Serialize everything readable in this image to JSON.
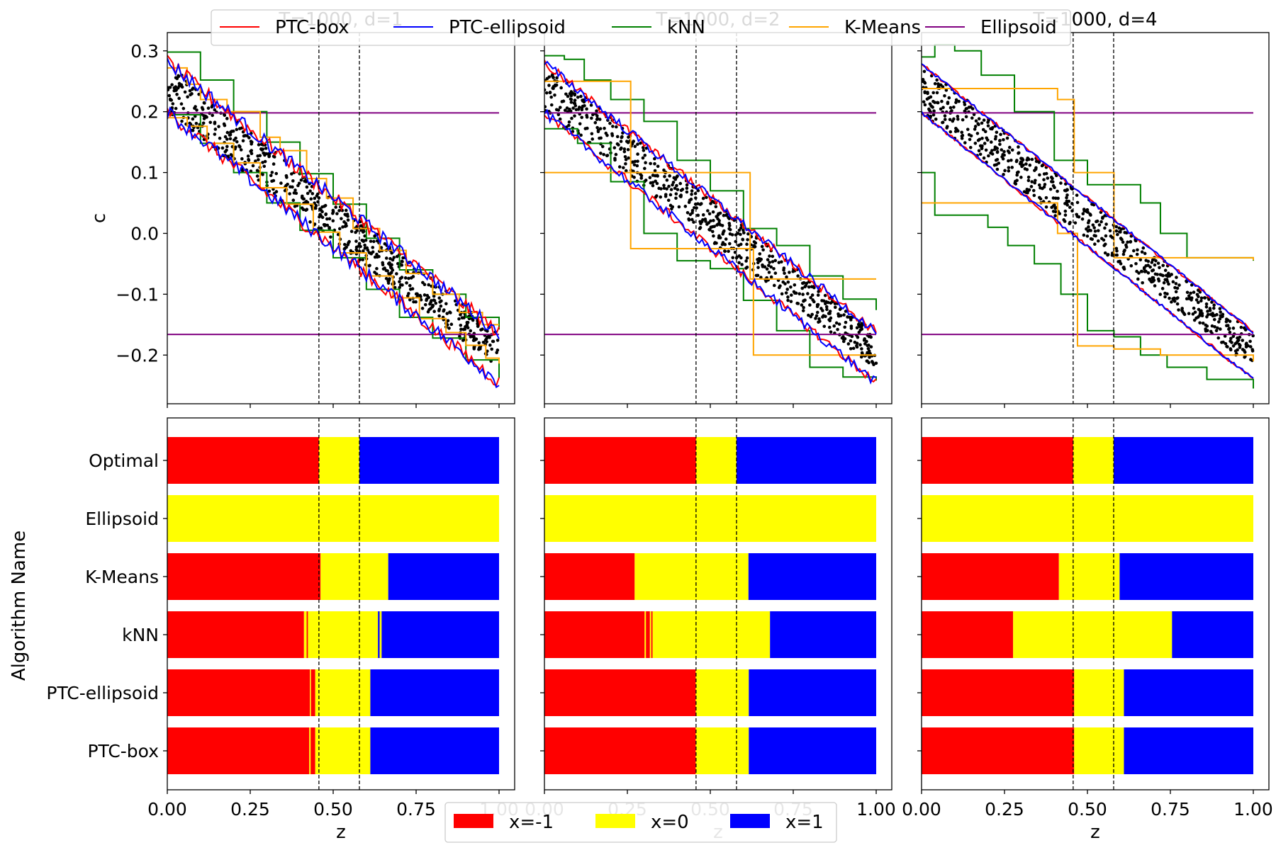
{
  "chart_data": {
    "type": "line",
    "x_range": [
      0,
      1
    ],
    "vlines": [
      0.457,
      0.579
    ],
    "top_legend": [
      {
        "name": "PTC-box",
        "color": "#ff0000"
      },
      {
        "name": "PTC-ellipsoid",
        "color": "#0000ff"
      },
      {
        "name": "kNN",
        "color": "#008000"
      },
      {
        "name": "K-Means",
        "color": "#ffa500"
      },
      {
        "name": "Ellipsoid",
        "color": "#800080"
      }
    ],
    "bottom_legend": [
      {
        "name": "x=-1",
        "color": "#ff0000"
      },
      {
        "name": "x=0",
        "color": "#ffff00"
      },
      {
        "name": "x=1",
        "color": "#0000ff"
      }
    ],
    "top_ylabel": "c",
    "top_ylim": [
      -0.28,
      0.33
    ],
    "top_yticks": [
      0.3,
      0.2,
      0.1,
      0.0,
      -0.1,
      -0.2
    ],
    "top_ytick_labels": [
      "0.3",
      "0.2",
      "0.1",
      "0.0",
      "−0.1",
      "−0.2"
    ],
    "xticks": [
      0,
      0.25,
      0.5,
      0.75,
      1.0
    ],
    "xtick_labels": [
      "0.00",
      "0.25",
      "0.50",
      "0.75",
      "1.00"
    ],
    "xlabel": "z",
    "bottom_ylabel": "Algorithm Name",
    "algorithms": [
      "Optimal",
      "Ellipsoid",
      "K-Means",
      "kNN",
      "PTC-ellipsoid",
      "PTC-box"
    ],
    "panels": [
      {
        "title": "T=1000, d=1",
        "ellipsoid_lines": [
          0.198,
          -0.166
        ],
        "kmeans_upper": [
          [
            0,
            0.272
          ],
          [
            0.06,
            0.245
          ],
          [
            0.1,
            0.22
          ],
          [
            0.18,
            0.2
          ],
          [
            0.28,
            0.158
          ],
          [
            0.34,
            0.136
          ],
          [
            0.42,
            0.09
          ],
          [
            0.48,
            0.058
          ],
          [
            0.56,
            0.008
          ],
          [
            0.64,
            -0.028
          ],
          [
            0.72,
            -0.066
          ],
          [
            0.8,
            -0.1
          ],
          [
            0.88,
            -0.13
          ],
          [
            0.95,
            -0.15
          ],
          [
            1.0,
            -0.15
          ]
        ],
        "kmeans_lower": [
          [
            0,
            0.19
          ],
          [
            0.06,
            0.176
          ],
          [
            0.12,
            0.148
          ],
          [
            0.2,
            0.116
          ],
          [
            0.28,
            0.075
          ],
          [
            0.36,
            0.048
          ],
          [
            0.44,
            0.002
          ],
          [
            0.52,
            -0.032
          ],
          [
            0.6,
            -0.07
          ],
          [
            0.68,
            -0.106
          ],
          [
            0.76,
            -0.14
          ],
          [
            0.84,
            -0.163
          ],
          [
            0.9,
            -0.184
          ],
          [
            0.96,
            -0.205
          ],
          [
            1.0,
            -0.214
          ]
        ],
        "knn_upper": [
          [
            0,
            0.298
          ],
          [
            0.1,
            0.252
          ],
          [
            0.2,
            0.2
          ],
          [
            0.3,
            0.15
          ],
          [
            0.4,
            0.098
          ],
          [
            0.5,
            0.048
          ],
          [
            0.6,
            -0.008
          ],
          [
            0.7,
            -0.06
          ],
          [
            0.8,
            -0.1
          ],
          [
            0.9,
            -0.138
          ],
          [
            1.0,
            -0.158
          ]
        ],
        "knn_lower": [
          [
            0,
            0.195
          ],
          [
            0.1,
            0.148
          ],
          [
            0.2,
            0.1
          ],
          [
            0.3,
            0.05
          ],
          [
            0.4,
            0.005
          ],
          [
            0.5,
            -0.04
          ],
          [
            0.6,
            -0.092
          ],
          [
            0.7,
            -0.138
          ],
          [
            0.8,
            -0.172
          ],
          [
            0.9,
            -0.208
          ],
          [
            1.0,
            -0.238
          ]
        ],
        "ptc_upper": [
          [
            0,
            0.282
          ],
          [
            1.0,
            -0.164
          ]
        ],
        "ptc_lower": [
          [
            0,
            0.2
          ],
          [
            1.0,
            -0.245
          ]
        ],
        "ptc_noise": 0.012,
        "bars": [
          [
            {
              "v": -1,
              "a": 0,
              "b": 0.457
            },
            {
              "v": 0,
              "a": 0.457,
              "b": 0.579
            },
            {
              "v": 1,
              "a": 0.579,
              "b": 1.0
            }
          ],
          [
            {
              "v": 0,
              "a": 0,
              "b": 1.0
            }
          ],
          [
            {
              "v": -1,
              "a": 0,
              "b": 0.462
            },
            {
              "v": 0,
              "a": 0.462,
              "b": 0.666
            },
            {
              "v": 1,
              "a": 0.666,
              "b": 1.0
            }
          ],
          [
            {
              "v": -1,
              "a": 0,
              "b": 0.412
            },
            {
              "v": 0,
              "a": 0.412,
              "b": 0.42
            },
            {
              "v": -1,
              "a": 0.42,
              "b": 0.424
            },
            {
              "v": 0,
              "a": 0.424,
              "b": 0.635
            },
            {
              "v": 1,
              "a": 0.635,
              "b": 0.64
            },
            {
              "v": 0,
              "a": 0.64,
              "b": 0.646
            },
            {
              "v": 1,
              "a": 0.646,
              "b": 1.0
            }
          ],
          [
            {
              "v": -1,
              "a": 0,
              "b": 0.43
            },
            {
              "v": 0,
              "a": 0.43,
              "b": 0.433
            },
            {
              "v": -1,
              "a": 0.433,
              "b": 0.446
            },
            {
              "v": 0,
              "a": 0.446,
              "b": 0.612
            },
            {
              "v": 1,
              "a": 0.612,
              "b": 1.0
            }
          ],
          [
            {
              "v": -1,
              "a": 0,
              "b": 0.428
            },
            {
              "v": 0,
              "a": 0.428,
              "b": 0.432
            },
            {
              "v": -1,
              "a": 0.432,
              "b": 0.446
            },
            {
              "v": 0,
              "a": 0.446,
              "b": 0.612
            },
            {
              "v": 1,
              "a": 0.612,
              "b": 1.0
            }
          ]
        ]
      },
      {
        "title": "T=1000, d=2",
        "ellipsoid_lines": [
          0.198,
          -0.166
        ],
        "kmeans_upper": [
          [
            0,
            0.25
          ],
          [
            0.26,
            0.25
          ],
          [
            0.26,
            0.1
          ],
          [
            0.62,
            0.1
          ],
          [
            0.62,
            -0.075
          ],
          [
            1.0,
            -0.075
          ]
        ],
        "kmeans_lower": [
          [
            0,
            0.1
          ],
          [
            0.26,
            0.1
          ],
          [
            0.26,
            -0.025
          ],
          [
            0.63,
            -0.025
          ],
          [
            0.63,
            -0.2
          ],
          [
            1.0,
            -0.2
          ]
        ],
        "knn_upper": [
          [
            0,
            0.292
          ],
          [
            0.06,
            0.286
          ],
          [
            0.12,
            0.252
          ],
          [
            0.2,
            0.22
          ],
          [
            0.3,
            0.184
          ],
          [
            0.4,
            0.12
          ],
          [
            0.5,
            0.07
          ],
          [
            0.6,
            0.008
          ],
          [
            0.7,
            -0.02
          ],
          [
            0.8,
            -0.07
          ],
          [
            0.9,
            -0.108
          ],
          [
            1.0,
            -0.126
          ]
        ],
        "knn_lower": [
          [
            0,
            0.172
          ],
          [
            0.1,
            0.148
          ],
          [
            0.2,
            0.085
          ],
          [
            0.3,
            0.0
          ],
          [
            0.4,
            -0.045
          ],
          [
            0.5,
            -0.058
          ],
          [
            0.6,
            -0.11
          ],
          [
            0.7,
            -0.16
          ],
          [
            0.8,
            -0.22
          ],
          [
            0.9,
            -0.236
          ],
          [
            1.0,
            -0.242
          ]
        ],
        "ptc_upper": [
          [
            0,
            0.28
          ],
          [
            1.0,
            -0.162
          ]
        ],
        "ptc_lower": [
          [
            0,
            0.198
          ],
          [
            1.0,
            -0.245
          ]
        ],
        "ptc_noise": 0.008,
        "bars": [
          [
            {
              "v": -1,
              "a": 0,
              "b": 0.457
            },
            {
              "v": 0,
              "a": 0.457,
              "b": 0.579
            },
            {
              "v": 1,
              "a": 0.579,
              "b": 1.0
            }
          ],
          [
            {
              "v": 0,
              "a": 0,
              "b": 1.0
            }
          ],
          [
            {
              "v": -1,
              "a": 0,
              "b": 0.272
            },
            {
              "v": 0,
              "a": 0.272,
              "b": 0.615
            },
            {
              "v": 1,
              "a": 0.615,
              "b": 1.0
            }
          ],
          [
            {
              "v": -1,
              "a": 0,
              "b": 0.302
            },
            {
              "v": 0,
              "a": 0.302,
              "b": 0.306
            },
            {
              "v": -1,
              "a": 0.306,
              "b": 0.318
            },
            {
              "v": 0,
              "a": 0.318,
              "b": 0.322
            },
            {
              "v": -1,
              "a": 0.322,
              "b": 0.326
            },
            {
              "v": 0,
              "a": 0.326,
              "b": 0.68
            },
            {
              "v": 1,
              "a": 0.68,
              "b": 1.0
            }
          ],
          [
            {
              "v": -1,
              "a": 0,
              "b": 0.456
            },
            {
              "v": 0,
              "a": 0.456,
              "b": 0.616
            },
            {
              "v": 1,
              "a": 0.616,
              "b": 1.0
            }
          ],
          [
            {
              "v": -1,
              "a": 0,
              "b": 0.456
            },
            {
              "v": 0,
              "a": 0.456,
              "b": 0.616
            },
            {
              "v": 1,
              "a": 0.616,
              "b": 1.0
            }
          ]
        ]
      },
      {
        "title": "T=1000, d=4",
        "ellipsoid_lines": [
          0.198,
          -0.166
        ],
        "kmeans_upper": [
          [
            0,
            0.238
          ],
          [
            0.41,
            0.238
          ],
          [
            0.41,
            0.22
          ],
          [
            0.46,
            0.22
          ],
          [
            0.46,
            0.1
          ],
          [
            0.58,
            0.1
          ],
          [
            0.58,
            -0.04
          ],
          [
            1.0,
            -0.044
          ]
        ],
        "kmeans_lower": [
          [
            0,
            0.05
          ],
          [
            0.41,
            0.05
          ],
          [
            0.41,
            0.0
          ],
          [
            0.47,
            0.0
          ],
          [
            0.47,
            -0.185
          ],
          [
            0.58,
            -0.185
          ],
          [
            0.58,
            -0.19
          ],
          [
            0.65,
            -0.19
          ],
          [
            0.72,
            -0.2
          ],
          [
            1.0,
            -0.21
          ]
        ],
        "knn_upper": [
          [
            0,
            0.29
          ],
          [
            0.04,
            0.31
          ],
          [
            0.1,
            0.3
          ],
          [
            0.18,
            0.26
          ],
          [
            0.28,
            0.2
          ],
          [
            0.4,
            0.12
          ],
          [
            0.5,
            0.08
          ],
          [
            0.58,
            0.08
          ],
          [
            0.66,
            0.05
          ],
          [
            0.72,
            0.0
          ],
          [
            0.8,
            -0.04
          ],
          [
            1.0,
            -0.045
          ]
        ],
        "knn_lower": [
          [
            0,
            0.1
          ],
          [
            0.04,
            0.03
          ],
          [
            0.14,
            0.03
          ],
          [
            0.2,
            0.01
          ],
          [
            0.26,
            -0.02
          ],
          [
            0.34,
            -0.05
          ],
          [
            0.42,
            -0.1
          ],
          [
            0.5,
            -0.16
          ],
          [
            0.58,
            -0.17
          ],
          [
            0.66,
            -0.2
          ],
          [
            0.74,
            -0.22
          ],
          [
            0.86,
            -0.24
          ],
          [
            1.0,
            -0.255
          ]
        ],
        "ptc_upper": [
          [
            0,
            0.278
          ],
          [
            1.0,
            -0.162
          ]
        ],
        "ptc_lower": [
          [
            0,
            0.198
          ],
          [
            1.0,
            -0.24
          ]
        ],
        "ptc_noise": 0.003,
        "bars": [
          [
            {
              "v": -1,
              "a": 0,
              "b": 0.457
            },
            {
              "v": 0,
              "a": 0.457,
              "b": 0.579
            },
            {
              "v": 1,
              "a": 0.579,
              "b": 1.0
            }
          ],
          [
            {
              "v": 0,
              "a": 0,
              "b": 1.0
            }
          ],
          [
            {
              "v": -1,
              "a": 0,
              "b": 0.414
            },
            {
              "v": 0,
              "a": 0.414,
              "b": 0.597
            },
            {
              "v": 1,
              "a": 0.597,
              "b": 1.0
            }
          ],
          [
            {
              "v": -1,
              "a": 0,
              "b": 0.276
            },
            {
              "v": 0,
              "a": 0.276,
              "b": 0.755
            },
            {
              "v": 1,
              "a": 0.755,
              "b": 1.0
            }
          ],
          [
            {
              "v": -1,
              "a": 0,
              "b": 0.46
            },
            {
              "v": 0,
              "a": 0.46,
              "b": 0.61
            },
            {
              "v": 1,
              "a": 0.61,
              "b": 1.0
            }
          ],
          [
            {
              "v": -1,
              "a": 0,
              "b": 0.46
            },
            {
              "v": 0,
              "a": 0.46,
              "b": 0.61
            },
            {
              "v": 1,
              "a": 0.61,
              "b": 1.0
            }
          ]
        ]
      }
    ],
    "scatter_band": {
      "upper_start": 0.28,
      "upper_end": -0.165,
      "lower_start": 0.198,
      "lower_end": -0.222,
      "count": 1000
    }
  }
}
